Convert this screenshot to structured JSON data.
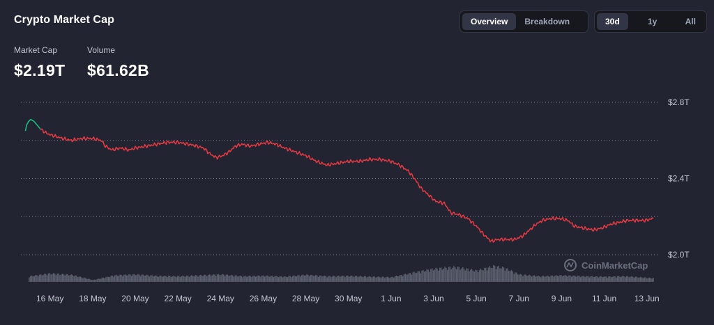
{
  "header": {
    "title": "Crypto Market Cap"
  },
  "stats": {
    "market_cap_label": "Market Cap",
    "market_cap_value": "$2.19T",
    "volume_label": "Volume",
    "volume_value": "$61.62B"
  },
  "view_toggle": {
    "options": [
      "Overview",
      "Breakdown"
    ],
    "active": "Overview"
  },
  "range_toggle": {
    "options": [
      "30d",
      "1y",
      "All"
    ],
    "active": "30d"
  },
  "watermark": "CoinMarketCap",
  "colors": {
    "background": "#222531",
    "down": "#ea3943",
    "up": "#16c784",
    "volume": "#5a5d6b",
    "grid": "#a1a7bb"
  },
  "chart_data": {
    "type": "line",
    "title": "",
    "ylabel": "",
    "xlabel": "",
    "ylim": [
      1.88,
      2.84
    ],
    "y_ticks": [
      "$2.8T",
      "$2.4T",
      "$2.0T"
    ],
    "y_tick_values": [
      2.8,
      2.4,
      2.0
    ],
    "grid_y_values": [
      2.8,
      2.6,
      2.4,
      2.2,
      2.0
    ],
    "x_ticks": [
      "16 May",
      "18 May",
      "20 May",
      "22 May",
      "24 May",
      "26 May",
      "28 May",
      "30 May",
      "1 Jun",
      "3 Jun",
      "5 Jun",
      "7 Jun",
      "9 Jun",
      "11 Jun",
      "13 Jun"
    ],
    "x_tick_days": [
      1,
      3,
      5,
      7,
      9,
      11,
      13,
      15,
      17,
      19,
      21,
      23,
      25,
      27,
      29
    ],
    "x_range_days": [
      -0.2,
      29.5
    ],
    "series": [
      {
        "color_key": "up",
        "points": [
          [
            -0.15,
            2.65
          ],
          [
            -0.1,
            2.68
          ],
          [
            0.0,
            2.7
          ],
          [
            0.1,
            2.71
          ],
          [
            0.25,
            2.7
          ],
          [
            0.4,
            2.68
          ],
          [
            0.55,
            2.66
          ]
        ]
      },
      {
        "color_key": "down",
        "points": [
          [
            0.55,
            2.66
          ],
          [
            0.8,
            2.64
          ],
          [
            1.0,
            2.63
          ],
          [
            1.3,
            2.62
          ],
          [
            1.6,
            2.61
          ],
          [
            2.0,
            2.6
          ],
          [
            2.5,
            2.61
          ],
          [
            3.0,
            2.61
          ],
          [
            3.4,
            2.6
          ],
          [
            3.6,
            2.57
          ],
          [
            3.9,
            2.55
          ],
          [
            4.3,
            2.56
          ],
          [
            4.7,
            2.55
          ],
          [
            5.0,
            2.56
          ],
          [
            5.5,
            2.57
          ],
          [
            6.0,
            2.58
          ],
          [
            6.5,
            2.59
          ],
          [
            7.0,
            2.59
          ],
          [
            7.5,
            2.58
          ],
          [
            7.9,
            2.57
          ],
          [
            8.2,
            2.56
          ],
          [
            8.5,
            2.53
          ],
          [
            8.8,
            2.51
          ],
          [
            9.1,
            2.52
          ],
          [
            9.4,
            2.54
          ],
          [
            9.7,
            2.57
          ],
          [
            10.0,
            2.58
          ],
          [
            10.4,
            2.57
          ],
          [
            10.8,
            2.58
          ],
          [
            11.2,
            2.59
          ],
          [
            11.6,
            2.58
          ],
          [
            12.0,
            2.56
          ],
          [
            12.5,
            2.54
          ],
          [
            13.0,
            2.52
          ],
          [
            13.5,
            2.49
          ],
          [
            14.0,
            2.47
          ],
          [
            14.5,
            2.48
          ],
          [
            15.0,
            2.49
          ],
          [
            15.5,
            2.49
          ],
          [
            16.0,
            2.5
          ],
          [
            16.5,
            2.5
          ],
          [
            17.0,
            2.49
          ],
          [
            17.4,
            2.47
          ],
          [
            17.8,
            2.44
          ],
          [
            18.1,
            2.4
          ],
          [
            18.4,
            2.35
          ],
          [
            18.8,
            2.31
          ],
          [
            19.1,
            2.28
          ],
          [
            19.5,
            2.27
          ],
          [
            19.8,
            2.22
          ],
          [
            20.2,
            2.21
          ],
          [
            20.6,
            2.19
          ],
          [
            21.0,
            2.15
          ],
          [
            21.4,
            2.1
          ],
          [
            21.7,
            2.07
          ],
          [
            22.0,
            2.08
          ],
          [
            22.4,
            2.08
          ],
          [
            22.8,
            2.08
          ],
          [
            23.2,
            2.1
          ],
          [
            23.5,
            2.13
          ],
          [
            23.8,
            2.16
          ],
          [
            24.1,
            2.18
          ],
          [
            24.5,
            2.19
          ],
          [
            24.9,
            2.19
          ],
          [
            25.3,
            2.18
          ],
          [
            25.6,
            2.15
          ],
          [
            26.0,
            2.14
          ],
          [
            26.5,
            2.13
          ],
          [
            26.9,
            2.14
          ],
          [
            27.3,
            2.16
          ],
          [
            27.7,
            2.17
          ],
          [
            28.1,
            2.18
          ],
          [
            28.5,
            2.18
          ],
          [
            28.9,
            2.18
          ],
          [
            29.3,
            2.19
          ]
        ]
      }
    ],
    "volume": [
      [
        0,
        0.3
      ],
      [
        1,
        0.45
      ],
      [
        2,
        0.38
      ],
      [
        3,
        0.1
      ],
      [
        4,
        0.35
      ],
      [
        5,
        0.4
      ],
      [
        6,
        0.32
      ],
      [
        7,
        0.3
      ],
      [
        8,
        0.35
      ],
      [
        9,
        0.4
      ],
      [
        10,
        0.3
      ],
      [
        11,
        0.33
      ],
      [
        12,
        0.28
      ],
      [
        13,
        0.38
      ],
      [
        14,
        0.3
      ],
      [
        15,
        0.32
      ],
      [
        16,
        0.28
      ],
      [
        17,
        0.25
      ],
      [
        18,
        0.5
      ],
      [
        19,
        0.7
      ],
      [
        20,
        0.8
      ],
      [
        21,
        0.6
      ],
      [
        21.8,
        0.85
      ],
      [
        22.3,
        0.75
      ],
      [
        23,
        0.4
      ],
      [
        24,
        0.3
      ],
      [
        25,
        0.35
      ],
      [
        26,
        0.3
      ],
      [
        27,
        0.28
      ],
      [
        28,
        0.3
      ],
      [
        29.3,
        0.2
      ]
    ]
  }
}
